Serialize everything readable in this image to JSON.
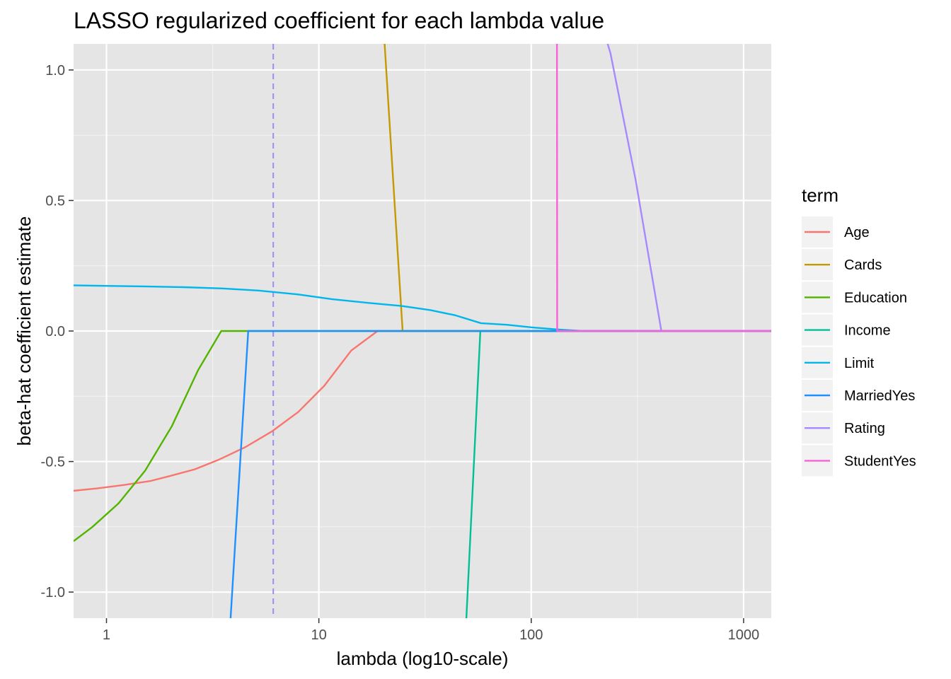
{
  "chart_data": {
    "type": "line",
    "title": "LASSO regularized coefficient for each lambda value",
    "xlabel": "lambda (log10-scale)",
    "ylabel": "beta-hat coefficient estimate",
    "x_scale": "log10",
    "xlim": [
      0.7,
      1350
    ],
    "ylim": [
      -1.1,
      1.1
    ],
    "x_ticks": [
      1,
      10,
      100,
      1000
    ],
    "x_tick_labels": [
      "1",
      "10",
      "100",
      "1000"
    ],
    "y_ticks": [
      -1.0,
      -0.5,
      0.0,
      0.5,
      1.0
    ],
    "y_tick_labels": [
      "-1.0",
      "-0.5",
      "0.0",
      "0.5",
      "1.0"
    ],
    "grid": true,
    "background": "#e5e5e5",
    "reference_line": {
      "x": 6.1,
      "style": "dashed",
      "color": "#9b8ef0"
    },
    "legend": {
      "title": "term",
      "placement": "right"
    },
    "series": [
      {
        "name": "Age",
        "color": "#F8766D",
        "points": [
          [
            0.7,
            -0.612
          ],
          [
            0.9,
            -0.603
          ],
          [
            1.2,
            -0.59
          ],
          [
            1.6,
            -0.575
          ],
          [
            2.0,
            -0.555
          ],
          [
            2.6,
            -0.53
          ],
          [
            3.4,
            -0.492
          ],
          [
            4.5,
            -0.445
          ],
          [
            6.0,
            -0.385
          ],
          [
            8.0,
            -0.31
          ],
          [
            10.6,
            -0.21
          ],
          [
            14.2,
            -0.075
          ],
          [
            18.9,
            0.0
          ],
          [
            1350,
            0.0
          ]
        ]
      },
      {
        "name": "Cards",
        "color": "#C49A00",
        "points": [
          [
            20.4,
            1.1
          ],
          [
            24.8,
            0.0
          ],
          [
            1350,
            0.0
          ]
        ]
      },
      {
        "name": "Education",
        "color": "#53B400",
        "points": [
          [
            0.7,
            -0.805
          ],
          [
            0.86,
            -0.75
          ],
          [
            1.14,
            -0.66
          ],
          [
            1.52,
            -0.535
          ],
          [
            2.03,
            -0.365
          ],
          [
            2.7,
            -0.15
          ],
          [
            3.47,
            0.0
          ],
          [
            1350,
            0.0
          ]
        ]
      },
      {
        "name": "Income",
        "color": "#00C094",
        "points": [
          [
            49.5,
            -1.1
          ],
          [
            57.6,
            0.0
          ],
          [
            1350,
            0.0
          ]
        ]
      },
      {
        "name": "Limit",
        "color": "#00B6EB",
        "points": [
          [
            0.7,
            0.175
          ],
          [
            1.0,
            0.173
          ],
          [
            1.5,
            0.171
          ],
          [
            2.3,
            0.168
          ],
          [
            3.5,
            0.163
          ],
          [
            5.2,
            0.155
          ],
          [
            8.0,
            0.14
          ],
          [
            11.5,
            0.122
          ],
          [
            17.0,
            0.108
          ],
          [
            24.5,
            0.096
          ],
          [
            33.5,
            0.08
          ],
          [
            44.0,
            0.06
          ],
          [
            58.0,
            0.03
          ],
          [
            77.0,
            0.024
          ],
          [
            100.0,
            0.014
          ],
          [
            133.0,
            0.006
          ],
          [
            175.0,
            0.0
          ],
          [
            1350,
            0.0
          ]
        ]
      },
      {
        "name": "MarriedYes",
        "color": "#1E90FF",
        "points": [
          [
            3.84,
            -1.1
          ],
          [
            4.65,
            0.0
          ],
          [
            1350,
            0.0
          ]
        ]
      },
      {
        "name": "Rating",
        "color": "#A58AFF",
        "points": [
          [
            229,
            1.1
          ],
          [
            236,
            1.065
          ],
          [
            310,
            0.58
          ],
          [
            410,
            0.0
          ],
          [
            1350,
            0.0
          ]
        ]
      },
      {
        "name": "StudentYes",
        "color": "#FB61D7",
        "points": [
          [
            132.2,
            1.1
          ],
          [
            132.5,
            0.0
          ],
          [
            1350,
            0.0
          ]
        ]
      }
    ]
  }
}
